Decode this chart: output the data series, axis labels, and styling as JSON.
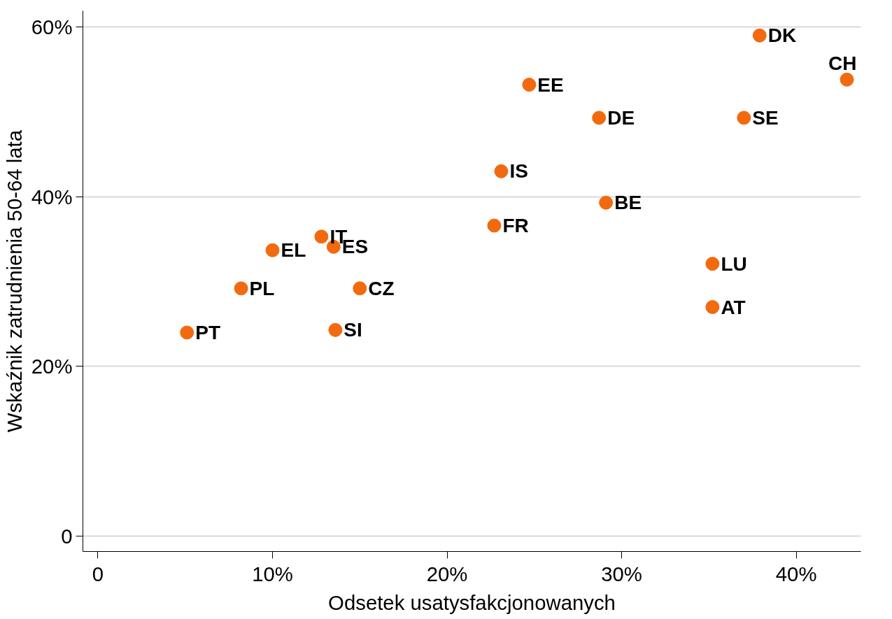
{
  "chart_data": {
    "type": "scatter",
    "xlabel": "Odsetek usatysfakcjonowanych",
    "ylabel": "Wskaźnik zatrudnienia 50-64 lata",
    "x": [
      5.1,
      8.2,
      10.0,
      12.8,
      13.5,
      15.0,
      13.6,
      22.7,
      23.1,
      24.7,
      28.7,
      29.1,
      35.2,
      35.2,
      37.0,
      37.9,
      42.9
    ],
    "series": [
      {
        "color": "#f26a0f",
        "values": [
          24.0,
          29.2,
          33.7,
          35.3,
          34.1,
          29.2,
          24.3,
          36.6,
          43.0,
          53.2,
          49.3,
          39.3,
          32.1,
          27.0,
          49.3,
          59.0,
          53.8
        ]
      }
    ],
    "annotations": [
      {
        "text": "PT",
        "x": 5.1,
        "y": 24.0
      },
      {
        "text": "PL",
        "x": 8.2,
        "y": 29.2
      },
      {
        "text": "EL",
        "x": 10.0,
        "y": 33.7
      },
      {
        "text": "IT",
        "x": 12.8,
        "y": 35.3
      },
      {
        "text": "ES",
        "x": 13.5,
        "y": 34.1
      },
      {
        "text": "CZ",
        "x": 15.0,
        "y": 29.2
      },
      {
        "text": "SI",
        "x": 13.6,
        "y": 24.3
      },
      {
        "text": "FR",
        "x": 22.7,
        "y": 36.6
      },
      {
        "text": "IS",
        "x": 23.1,
        "y": 43.0
      },
      {
        "text": "EE",
        "x": 24.7,
        "y": 53.2
      },
      {
        "text": "DE",
        "x": 28.7,
        "y": 49.3
      },
      {
        "text": "BE",
        "x": 29.1,
        "y": 39.3
      },
      {
        "text": "LU",
        "x": 35.2,
        "y": 32.1
      },
      {
        "text": "AT",
        "x": 35.2,
        "y": 27.0
      },
      {
        "text": "SE",
        "x": 37.0,
        "y": 49.3
      },
      {
        "text": "DK",
        "x": 37.9,
        "y": 59.0
      },
      {
        "text": "CH",
        "x": 42.9,
        "y": 53.8
      }
    ],
    "xlim": [
      -0.86,
      43.7
    ],
    "ylim": [
      -1.8,
      61.9
    ],
    "xticks": [
      0,
      {
        "value": 10,
        "label": "10%"
      },
      {
        "value": 20,
        "label": "20%"
      },
      {
        "value": 30,
        "label": "30%"
      },
      {
        "value": 40,
        "label": "40%"
      }
    ],
    "yticks": [
      0,
      {
        "value": 20,
        "label": "20%"
      },
      {
        "value": 40,
        "label": "40%"
      },
      {
        "value": 60,
        "label": "60%"
      }
    ],
    "grid": "y",
    "marker": "circle"
  }
}
